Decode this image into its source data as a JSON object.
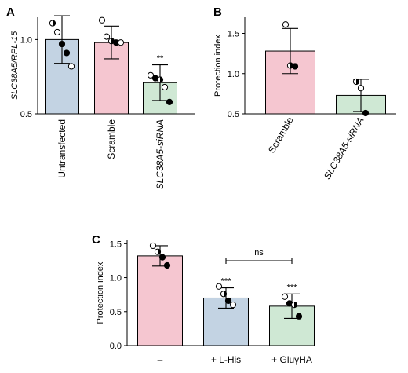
{
  "colors": {
    "blue": "#c3d3e3",
    "pink": "#f5c6d0",
    "green": "#cfe8d4"
  },
  "chart_data": [
    {
      "panel": "A",
      "type": "bar",
      "ylabel": "SLC38A5/RPL-15",
      "ylim": [
        0.5,
        1.15
      ],
      "yticks": [
        0.5,
        1.0
      ],
      "ytick_labels": [
        "0.5",
        "1.0"
      ],
      "categories": [
        "Untransfected",
        "Scramble",
        "SLC38A5-siRNA"
      ],
      "bar_colors": [
        "blue",
        "pink",
        "green"
      ],
      "values": [
        1.0,
        0.98,
        0.71
      ],
      "errors": [
        0.16,
        0.11,
        0.12
      ],
      "significance": [
        "",
        "",
        "**"
      ],
      "points": [
        [
          {
            "y": 1.11,
            "style": "half"
          },
          {
            "y": 1.05,
            "style": "open"
          },
          {
            "y": 0.97,
            "style": "filled"
          },
          {
            "y": 0.91,
            "style": "filled"
          },
          {
            "y": 0.82,
            "style": "open"
          }
        ],
        [
          {
            "y": 1.13,
            "style": "open"
          },
          {
            "y": 1.02,
            "style": "open"
          },
          {
            "y": 0.99,
            "style": "half"
          },
          {
            "y": 0.98,
            "style": "filled"
          },
          {
            "y": 0.98,
            "style": "open"
          }
        ],
        [
          {
            "y": 0.76,
            "style": "open"
          },
          {
            "y": 0.74,
            "style": "filled"
          },
          {
            "y": 0.73,
            "style": "half"
          },
          {
            "y": 0.68,
            "style": "open"
          },
          {
            "y": 0.58,
            "style": "filled"
          }
        ]
      ]
    },
    {
      "panel": "B",
      "type": "bar",
      "ylabel": "Protection index",
      "ylim": [
        0.5,
        1.7
      ],
      "yticks": [
        0.5,
        1.0,
        1.5
      ],
      "ytick_labels": [
        "0.5",
        "1.0",
        "1.5"
      ],
      "categories": [
        "Scramble",
        "SLC38A5-siRNA"
      ],
      "bar_colors": [
        "pink",
        "green"
      ],
      "values": [
        1.28,
        0.73
      ],
      "errors": [
        0.28,
        0.2
      ],
      "significance": [
        "",
        ""
      ],
      "points": [
        [
          {
            "y": 1.61,
            "style": "open"
          },
          {
            "y": 1.1,
            "style": "half"
          },
          {
            "y": 1.09,
            "style": "filled"
          }
        ],
        [
          {
            "y": 0.9,
            "style": "half"
          },
          {
            "y": 0.82,
            "style": "open"
          },
          {
            "y": 0.51,
            "style": "filled"
          }
        ]
      ]
    },
    {
      "panel": "C",
      "type": "bar",
      "ylabel": "Protection index",
      "ylim": [
        0.0,
        1.55
      ],
      "yticks": [
        0.0,
        0.5,
        1.0,
        1.5
      ],
      "ytick_labels": [
        "0.0",
        "0.5",
        "1.0",
        "1.5"
      ],
      "categories": [
        "–",
        "+ L-His",
        "+ GluγHA"
      ],
      "bar_colors": [
        "pink",
        "blue",
        "green"
      ],
      "values": [
        1.32,
        0.7,
        0.58
      ],
      "errors": [
        0.15,
        0.15,
        0.18
      ],
      "significance": [
        "",
        "***",
        "***"
      ],
      "bracket": {
        "from": 1,
        "to": 2,
        "label": "ns"
      },
      "points": [
        [
          {
            "y": 1.47,
            "style": "open"
          },
          {
            "y": 1.38,
            "style": "half"
          },
          {
            "y": 1.3,
            "style": "filled"
          },
          {
            "y": 1.18,
            "style": "filled"
          }
        ],
        [
          {
            "y": 0.87,
            "style": "open"
          },
          {
            "y": 0.76,
            "style": "half"
          },
          {
            "y": 0.66,
            "style": "filled"
          },
          {
            "y": 0.6,
            "style": "open"
          }
        ],
        [
          {
            "y": 0.72,
            "style": "open"
          },
          {
            "y": 0.62,
            "style": "filled"
          },
          {
            "y": 0.6,
            "style": "half"
          },
          {
            "y": 0.43,
            "style": "filled"
          }
        ]
      ]
    }
  ]
}
